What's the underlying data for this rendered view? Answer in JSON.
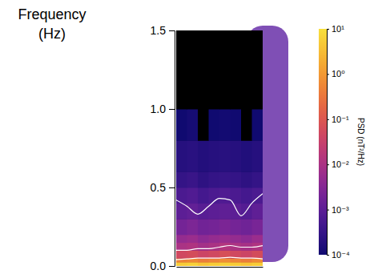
{
  "chart_data": {
    "type": "heatmap",
    "y_label": "Frequency (Hz)",
    "ylim": [
      0,
      1.5
    ],
    "yticks": [
      {
        "value": 0,
        "label": "0.0"
      },
      {
        "value": 0.5,
        "label": "0.5"
      },
      {
        "value": 1,
        "label": "1.0"
      },
      {
        "value": 1.5,
        "label": "1.5"
      }
    ],
    "xlim": [
      0,
      8
    ],
    "tick_labels": "y",
    "x_bins": [
      0,
      1,
      2,
      3,
      4,
      5,
      6,
      7,
      8
    ],
    "y_bins": [
      0,
      0.025,
      0.05,
      0.1,
      0.15,
      0.2,
      0.3,
      0.4,
      0.5,
      0.6,
      0.8,
      1.0,
      1.2,
      1.4,
      1.5
    ],
    "z": [
      [
        5,
        6,
        4,
        5,
        6,
        5,
        4,
        5
      ],
      [
        0.5,
        0.6,
        0.4,
        0.5,
        0.7,
        0.5,
        0.4,
        0.6
      ],
      [
        0.05,
        0.06,
        0.04,
        0.05,
        0.07,
        0.05,
        0.04,
        0.06
      ],
      [
        0.01,
        0.012,
        0.008,
        0.01,
        0.014,
        0.011,
        0.009,
        0.012
      ],
      [
        0.005,
        0.006,
        0.004,
        0.005,
        0.006,
        0.005,
        0.004,
        0.006
      ],
      [
        0.002,
        0.0025,
        0.0018,
        0.002,
        0.0024,
        0.002,
        0.0017,
        0.0022
      ],
      [
        0.001,
        0.0012,
        0.0009,
        0.001,
        0.0011,
        0.001,
        0.0008,
        0.0011
      ],
      [
        0.0006,
        0.0007,
        0.0005,
        0.0006,
        0.0007,
        0.0006,
        0.0005,
        0.0006
      ],
      [
        0.0003,
        0.00035,
        0.00025,
        0.0003,
        0.00032,
        0.0003,
        0.00025,
        0.0003
      ],
      [
        0.0002,
        0.00022,
        0.00018,
        0.0002,
        0.00021,
        0.0002,
        0.00017,
        0.0002
      ],
      [
        0.0001,
        0.00012,
        9e-05,
        0.0001,
        0.00011,
        0.0001,
        9e-05,
        0.0001
      ],
      [
        6e-05,
        7e-05,
        5e-05,
        6e-05,
        6e-05,
        5e-05,
        5e-05,
        6e-05
      ],
      [
        4e-05,
        5e-05,
        4e-05,
        4e-05,
        5e-05,
        4e-05,
        4e-05,
        4e-05
      ],
      [
        4e-05,
        4e-05,
        3e-05,
        4e-05,
        4e-05,
        4e-05,
        3e-05,
        6e-05
      ]
    ],
    "colorbar": {
      "label": "PSD (nT²/Hz)",
      "lim": [
        0.0001,
        10
      ],
      "log": true,
      "ticks": [
        {
          "value": 0.0001,
          "label": "10⁻⁴"
        },
        {
          "value": 0.001,
          "label": "10⁻³"
        },
        {
          "value": 0.01,
          "label": "10⁻²"
        },
        {
          "value": 0.1,
          "label": "10⁻¹"
        },
        {
          "value": 1,
          "label": "10⁰"
        },
        {
          "value": 10,
          "label": "10¹"
        }
      ]
    },
    "series": [
      {
        "type": "line",
        "color": "#ffffff",
        "x": [
          0,
          1,
          2,
          3,
          4,
          5,
          6,
          7,
          8
        ],
        "values": [
          0.42,
          0.38,
          0.33,
          0.38,
          0.43,
          0.42,
          0.32,
          0.4,
          0.46
        ]
      },
      {
        "type": "line",
        "color": "#ffffff",
        "x": [
          0,
          1,
          2,
          3,
          4,
          5,
          6,
          7,
          8
        ],
        "values": [
          0.1,
          0.1,
          0.11,
          0.11,
          0.12,
          0.13,
          0.12,
          0.12,
          0.13
        ]
      },
      {
        "type": "line",
        "color": "#ffffff",
        "x": [
          0,
          1,
          2,
          3,
          4,
          5,
          6,
          7,
          8
        ],
        "values": [
          0.04,
          0.045,
          0.05,
          0.05,
          0.05,
          0.055,
          0.05,
          0.05,
          0.045
        ]
      }
    ]
  }
}
